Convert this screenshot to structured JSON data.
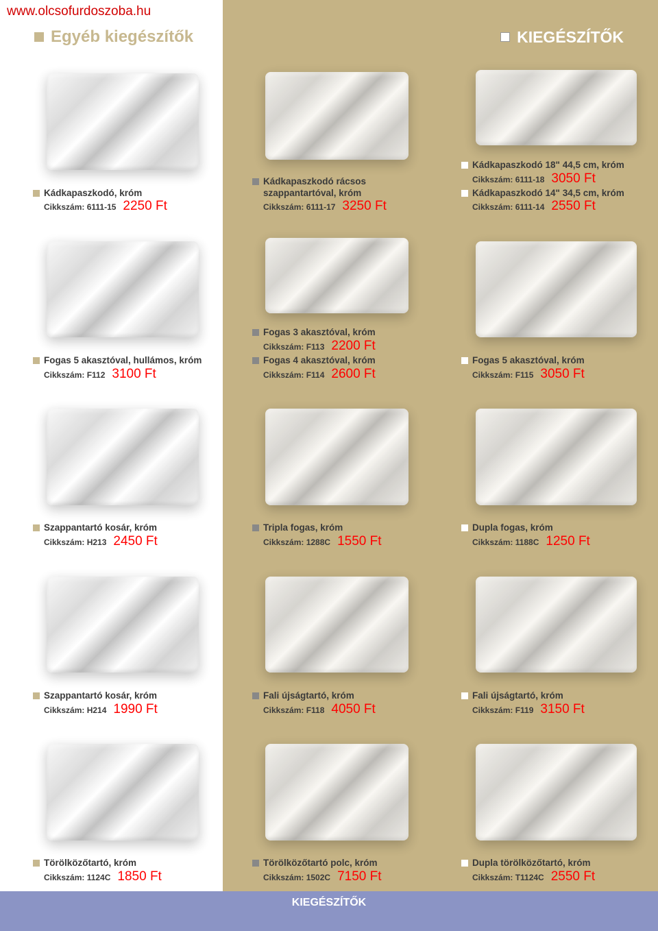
{
  "url": "www.olcsofurdoszoba.hu",
  "header_left": "Egyéb kiegészítők",
  "header_right": "KIEGÉSZÍTŐK",
  "footer": "KIEGÉSZÍTŐK",
  "products": [
    {
      "entries": [
        {
          "title": "Kádkapaszkodó, króm",
          "sku": "Cikkszám: 6111-15",
          "price": "2250 Ft"
        }
      ]
    },
    {
      "entries": [
        {
          "title": "Kádkapaszkodó rácsos szappantartóval, króm",
          "sku": "Cikkszám: 6111-17",
          "price": "3250 Ft"
        }
      ]
    },
    {
      "entries": [
        {
          "title": "Kádkapaszkodó 18\" 44,5 cm, króm",
          "sku": "Cikkszám: 6111-18",
          "price": "3050 Ft"
        },
        {
          "title": "Kádkapaszkodó 14\" 34,5 cm, króm",
          "sku": "Cikkszám: 6111-14",
          "price": "2550 Ft"
        }
      ]
    },
    {
      "entries": [
        {
          "title": "Fogas 5 akasztóval, hullámos, króm",
          "sku": "Cikkszám: F112",
          "price": "3100 Ft"
        }
      ]
    },
    {
      "entries": [
        {
          "title": "Fogas 3 akasztóval, króm",
          "sku": "Cikkszám: F113",
          "price": "2200 Ft"
        },
        {
          "title": "Fogas 4 akasztóval, króm",
          "sku": "Cikkszám: F114",
          "price": "2600 Ft"
        }
      ]
    },
    {
      "entries": [
        {
          "title": "Fogas 5 akasztóval, króm",
          "sku": "Cikkszám: F115",
          "price": "3050 Ft"
        }
      ]
    },
    {
      "entries": [
        {
          "title": "Szappantartó kosár, króm",
          "sku": "Cikkszám: H213",
          "price": "2450 Ft"
        }
      ]
    },
    {
      "entries": [
        {
          "title": "Tripla fogas, króm",
          "sku": "Cikkszám: 1288C",
          "price": "1550 Ft"
        }
      ]
    },
    {
      "entries": [
        {
          "title": "Dupla fogas, króm",
          "sku": "Cikkszám: 1188C",
          "price": "1250 Ft"
        }
      ]
    },
    {
      "entries": [
        {
          "title": "Szappantartó kosár, króm",
          "sku": "Cikkszám: H214",
          "price": "1990 Ft"
        }
      ]
    },
    {
      "entries": [
        {
          "title": "Fali újságtartó, króm",
          "sku": "Cikkszám: F118",
          "price": "4050 Ft"
        }
      ]
    },
    {
      "entries": [
        {
          "title": "Fali újságtartó, króm",
          "sku": "Cikkszám: F119",
          "price": "3150 Ft"
        }
      ]
    },
    {
      "entries": [
        {
          "title": "Törölközőtartó, króm",
          "sku": "Cikkszám: 1124C",
          "price": "1850 Ft"
        }
      ]
    },
    {
      "entries": [
        {
          "title": "Törölközőtartó polc, króm",
          "sku": "Cikkszám: 1502C",
          "price": "7150 Ft"
        }
      ]
    },
    {
      "entries": [
        {
          "title": "Dupla törölközőtartó, króm",
          "sku": "Cikkszám: T1124C",
          "price": "2550 Ft"
        }
      ]
    }
  ]
}
